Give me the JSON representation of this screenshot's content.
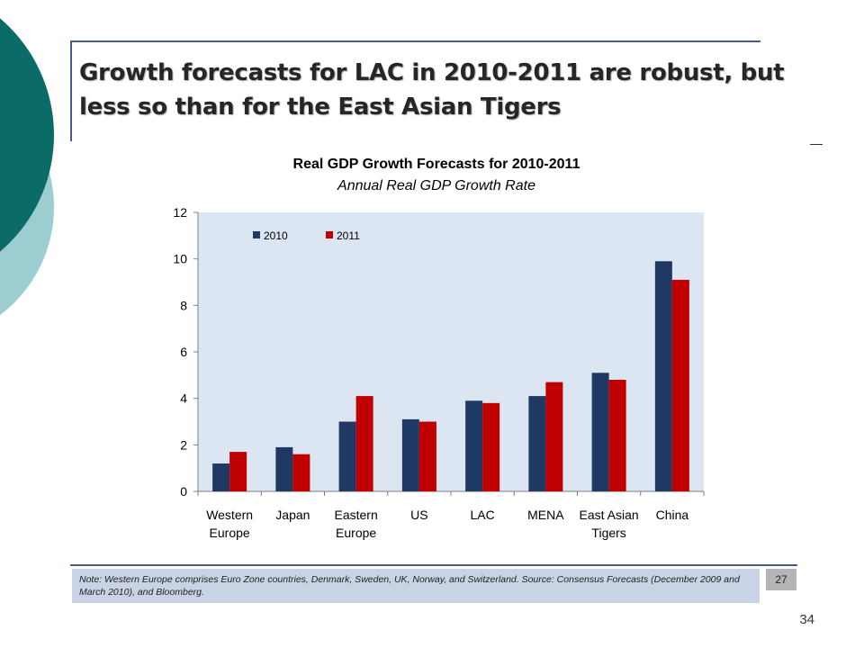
{
  "slide": {
    "title": "Growth forecasts for LAC in 2010-2011 are robust, but less so than for the East Asian Tigers",
    "note": "Note: Western Europe comprises Euro Zone countries, Denmark, Sweden, UK, Norway, and Switzerland. Source: Consensus Forecasts (December 2009 and March 2010), and Bloomberg.",
    "badge": "27",
    "page_number": "34"
  },
  "colors": {
    "deco_dark": "#0b6b66",
    "deco_light": "#9ccdd0",
    "plot_bg": "#dce6f2",
    "series_2010": "#1f3864",
    "series_2011": "#c00000"
  },
  "chart_data": {
    "type": "bar",
    "title": "Real GDP Growth Forecasts for 2010-2011",
    "subtitle": "Annual Real GDP Growth Rate",
    "categories": [
      [
        "Western",
        "Europe"
      ],
      [
        "Japan"
      ],
      [
        "Eastern",
        "Europe"
      ],
      [
        "US"
      ],
      [
        "LAC"
      ],
      [
        "MENA"
      ],
      [
        "East Asian",
        "Tigers"
      ],
      [
        "China"
      ]
    ],
    "series": [
      {
        "name": "2010",
        "values": [
          1.2,
          1.9,
          3.0,
          3.1,
          3.9,
          4.1,
          5.1,
          9.9
        ]
      },
      {
        "name": "2011",
        "values": [
          1.7,
          1.6,
          4.1,
          3.0,
          3.8,
          4.7,
          4.8,
          9.1
        ]
      }
    ],
    "ylim": [
      0,
      12
    ],
    "yticks": [
      0,
      2,
      4,
      6,
      8,
      10,
      12
    ],
    "grid": false,
    "legend_position": "top-left"
  }
}
